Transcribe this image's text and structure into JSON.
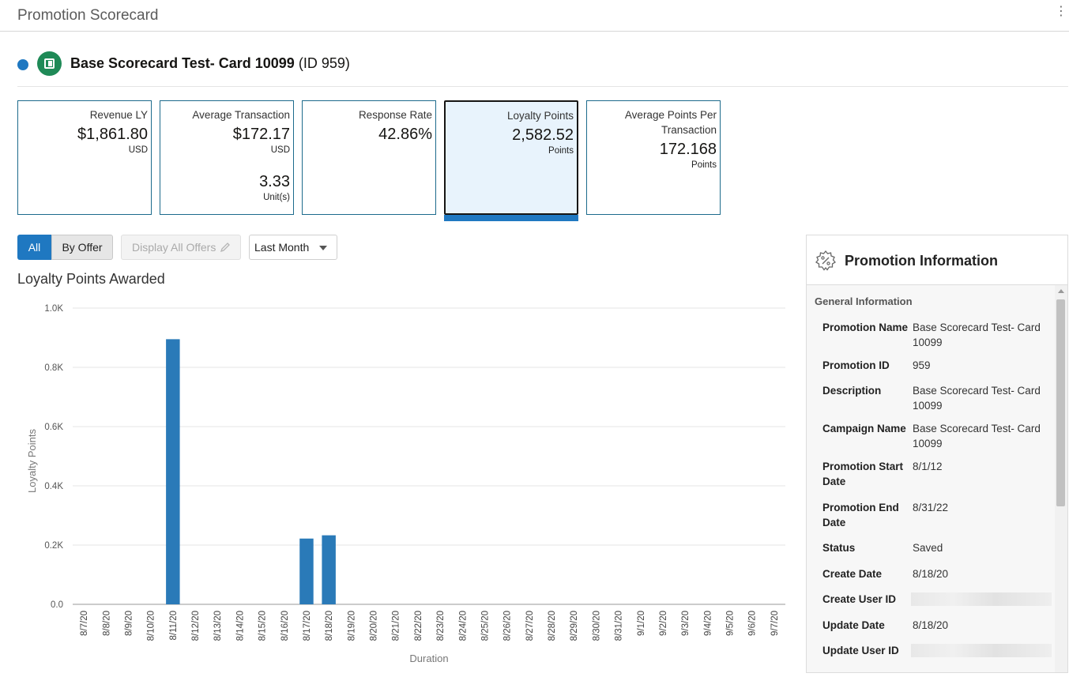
{
  "app": {
    "title": "Promotion Scorecard"
  },
  "promotion": {
    "name": "Base Scorecard Test- Card 10099",
    "id_label": "(ID 959)"
  },
  "metrics": [
    {
      "label": "Revenue LY",
      "value": "$1,861.80",
      "unit": "USD"
    },
    {
      "label": "Average Transaction",
      "value": "$172.17",
      "unit": "USD",
      "value2": "3.33",
      "unit2": "Unit(s)"
    },
    {
      "label": "Response Rate",
      "value": "42.86%"
    },
    {
      "label": "Loyalty Points",
      "value": "2,582.52",
      "unit": "Points",
      "selected": true
    },
    {
      "label": "Average Points Per Transaction",
      "value": "172.168",
      "unit": "Points"
    }
  ],
  "controls": {
    "all": "All",
    "by_offer": "By Offer",
    "display_all_offers": "Display All Offers",
    "period": "Last Month"
  },
  "colors": {
    "accent": "#1f78c1",
    "bar": "#2a7ab8",
    "card_border": "#1d6b8c",
    "badge": "#1f8a57"
  },
  "chart_data": {
    "type": "bar",
    "title": "Loyalty Points Awarded",
    "xlabel": "Duration",
    "ylabel": "Loyalty Points",
    "ylim": [
      0,
      1000
    ],
    "yticks": [
      "0.0",
      "0.2K",
      "0.4K",
      "0.6K",
      "0.8K",
      "1.0K"
    ],
    "grid": true,
    "categories": [
      "8/7/20",
      "8/8/20",
      "8/9/20",
      "8/10/20",
      "8/11/20",
      "8/12/20",
      "8/13/20",
      "8/14/20",
      "8/15/20",
      "8/16/20",
      "8/17/20",
      "8/18/20",
      "8/19/20",
      "8/20/20",
      "8/21/20",
      "8/22/20",
      "8/23/20",
      "8/24/20",
      "8/25/20",
      "8/26/20",
      "8/27/20",
      "8/28/20",
      "8/29/20",
      "8/30/20",
      "8/31/20",
      "9/1/20",
      "9/2/20",
      "9/3/20",
      "9/4/20",
      "9/5/20",
      "9/6/20",
      "9/7/20"
    ],
    "values": [
      0,
      0,
      0,
      0,
      895,
      0,
      0,
      0,
      0,
      0,
      222,
      233,
      0,
      0,
      0,
      0,
      0,
      0,
      0,
      0,
      0,
      0,
      0,
      0,
      0,
      0,
      0,
      0,
      0,
      0,
      0,
      0
    ]
  },
  "info": {
    "title": "Promotion Information",
    "section": "General Information",
    "rows": [
      {
        "key": "Promotion Name",
        "value": "Base Scorecard Test- Card 10099"
      },
      {
        "key": "Promotion ID",
        "value": "959"
      },
      {
        "key": "Description",
        "value": "Base Scorecard Test- Card 10099"
      },
      {
        "key": "Campaign Name",
        "value": "Base Scorecard Test- Card 10099"
      },
      {
        "key": "Promotion Start Date",
        "value": "8/1/12"
      },
      {
        "key": "Promotion End Date",
        "value": "8/31/22"
      },
      {
        "key": "Status",
        "value": "Saved"
      },
      {
        "key": "Create Date",
        "value": "8/18/20"
      },
      {
        "key": "Create User ID",
        "value": ""
      },
      {
        "key": "Update Date",
        "value": "8/18/20"
      },
      {
        "key": "Update User ID",
        "value": ""
      }
    ]
  }
}
